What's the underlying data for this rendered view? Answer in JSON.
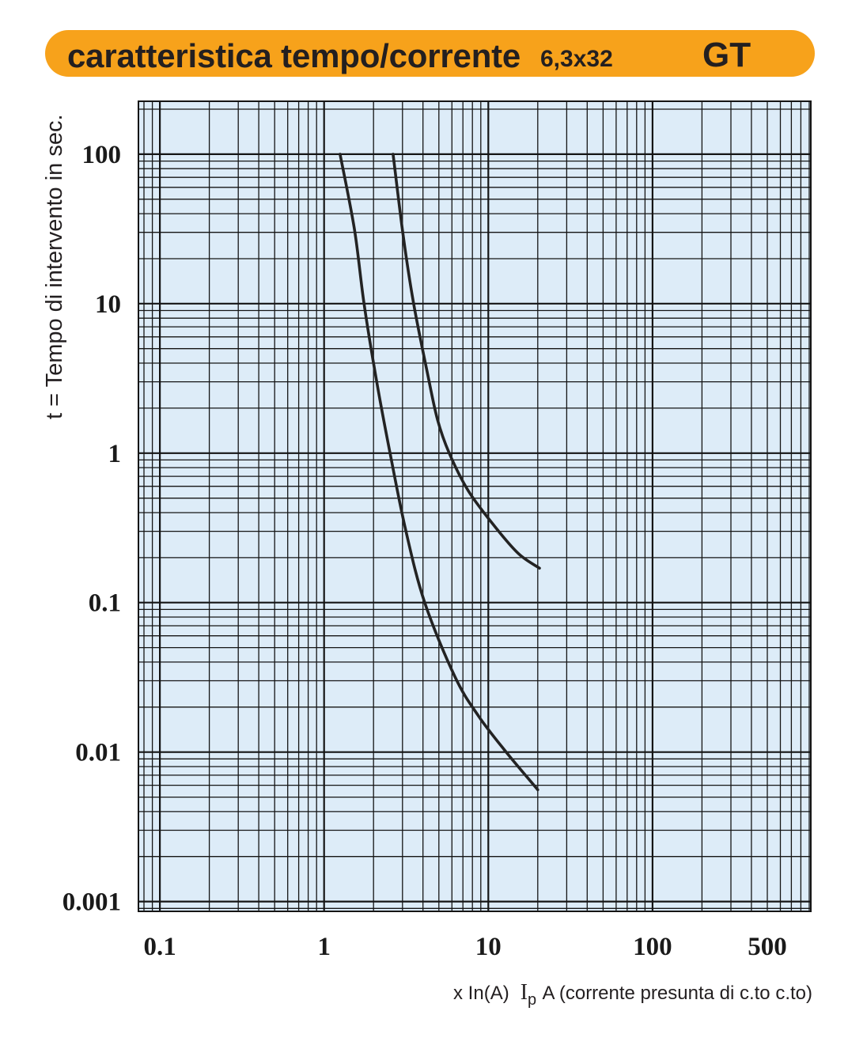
{
  "chart_data": {
    "type": "line",
    "title": "caratteristica tempo/corrente",
    "subtitle": "6,3x32",
    "badge": "GT",
    "ylabel": "t = Tempo di intervento in sec.",
    "xlabel": {
      "unit_label": "x In(A)",
      "symbol": "I",
      "symbol_subscript": "p",
      "text": "A (corrente presunta di c.to c.to)"
    },
    "x_scale": "log",
    "y_scale": "log",
    "xlim": [
      0.074,
      920
    ],
    "ylim": [
      0.00086,
      226
    ],
    "grid": true,
    "x_ticks": [
      {
        "value": 0.1,
        "label": "0.1"
      },
      {
        "value": 1,
        "label": "1"
      },
      {
        "value": 10,
        "label": "10"
      },
      {
        "value": 100,
        "label": "100"
      },
      {
        "value": 500,
        "label": "500"
      }
    ],
    "y_ticks": [
      {
        "value": 100,
        "label": "100"
      },
      {
        "value": 10,
        "label": "10"
      },
      {
        "value": 1,
        "label": "1"
      },
      {
        "value": 0.1,
        "label": "0.1"
      },
      {
        "value": 0.01,
        "label": "0.01"
      },
      {
        "value": 0.001,
        "label": "0.001"
      }
    ],
    "series": [
      {
        "x": [
          1.25,
          1.53,
          1.75,
          2.08,
          2.52,
          3.14,
          4.1,
          6.25,
          8.72,
          12.85,
          20.0
        ],
        "y": [
          100,
          31.4,
          10,
          3.1,
          1,
          0.305,
          0.1,
          0.032,
          0.0174,
          0.01,
          0.0056
        ]
      },
      {
        "x": [
          2.63,
          3.04,
          3.51,
          4.24,
          4.9,
          5.78,
          7.55,
          10.9,
          15.3,
          20.5
        ],
        "y": [
          100,
          27.8,
          10,
          3.5,
          1.68,
          1,
          0.56,
          0.325,
          0.212,
          0.17
        ]
      }
    ]
  },
  "colors": {
    "banner": "#f7a21b",
    "plot_background": "#ddecf8",
    "grid": "#151515",
    "curve": "#232323",
    "text": "#1a1a1a"
  }
}
